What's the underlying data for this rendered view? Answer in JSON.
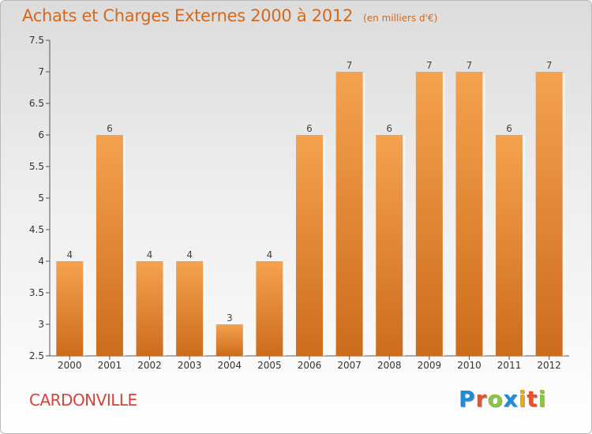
{
  "header": {
    "title": "Achats et Charges Externes 2000 à 2012",
    "unit": "(en milliers d'€)"
  },
  "footer": {
    "place": "CARDONVILLE",
    "logo_text": "Proxiti",
    "logo_letters": [
      {
        "char": "P",
        "color": "#1a8fd8"
      },
      {
        "char": "r",
        "color": "#e8542a"
      },
      {
        "char": "o",
        "color": "#8cc63f"
      },
      {
        "char": "x",
        "color": "#1a8fd8"
      },
      {
        "char": "i",
        "color": "#f2a900"
      },
      {
        "char": "t",
        "color": "#e8542a"
      },
      {
        "char": "i",
        "color": "#8cc63f"
      }
    ]
  },
  "colors": {
    "bar_top": "#f5a24f",
    "bar_bottom": "#cc6c1c",
    "title": "#d2691e",
    "place": "#d8413a"
  },
  "chart_data": {
    "type": "bar",
    "categories": [
      "2000",
      "2001",
      "2002",
      "2003",
      "2004",
      "2005",
      "2006",
      "2007",
      "2008",
      "2009",
      "2010",
      "2011",
      "2012"
    ],
    "values": [
      4,
      6,
      4,
      4,
      3,
      4,
      6,
      7,
      6,
      7,
      7,
      6,
      7
    ],
    "value_labels": [
      "4",
      "6",
      "4",
      "4",
      "3",
      "4",
      "6",
      "7",
      "6",
      "7",
      "7",
      "6",
      "7"
    ],
    "yticks": [
      "2.5",
      "3",
      "3.5",
      "4",
      "4.5",
      "5",
      "5.5",
      "6",
      "6.5",
      "7",
      "7.5"
    ],
    "ylim": [
      2.5,
      7.5
    ],
    "grid": false,
    "title": "Achats et Charges Externes 2000 à 2012"
  }
}
